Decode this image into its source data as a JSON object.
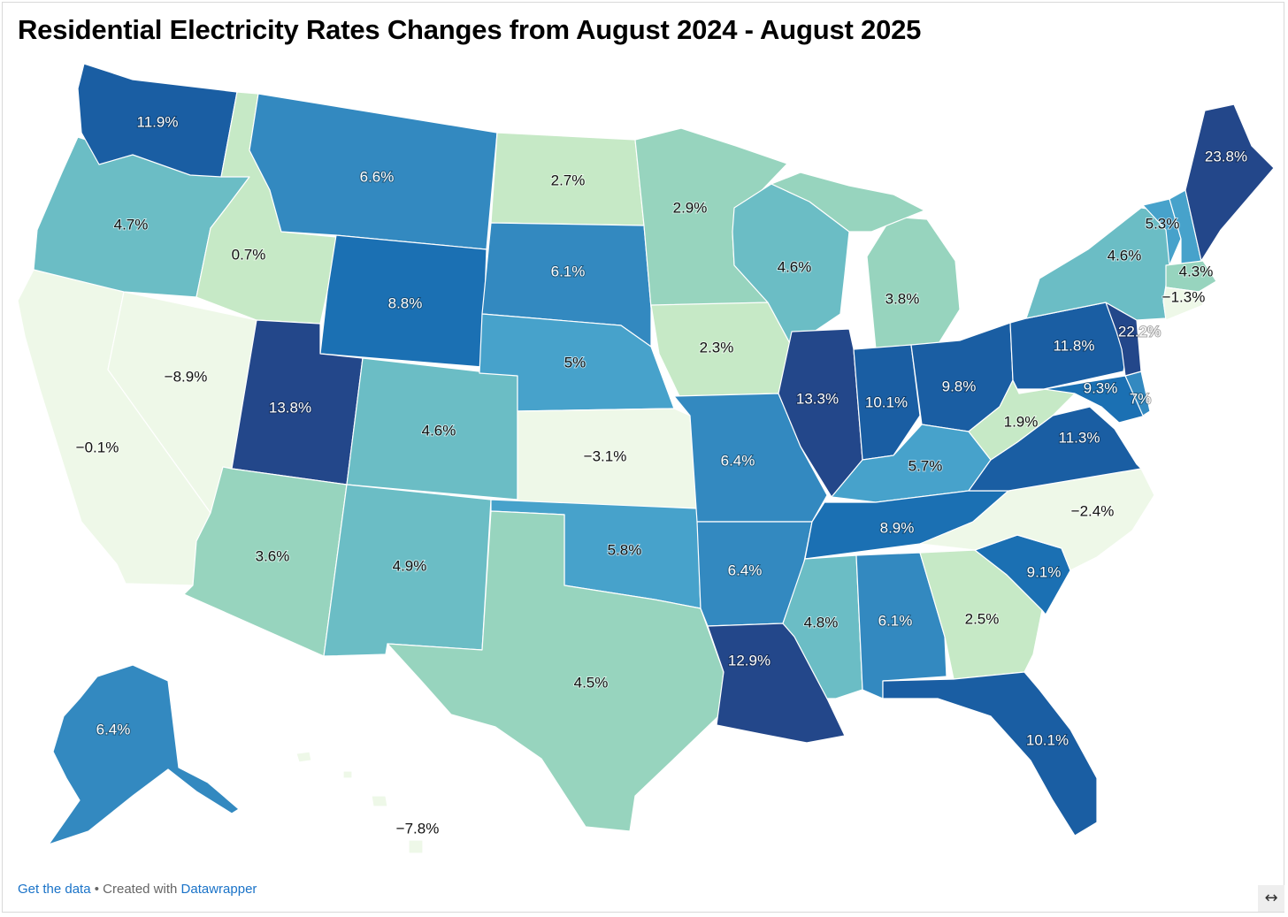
{
  "title": "Residential Electricity Rates Changes from August 2024 - August 2025",
  "footer": {
    "get_data": "Get the data",
    "separator": " • Created with ",
    "tool": "Datawrapper"
  },
  "resize_icon": "↔",
  "color_scale": [
    "#eef8e8",
    "#c6e9c6",
    "#97d4be",
    "#6bbdc5",
    "#47a2cb",
    "#3389c0",
    "#1b70b3",
    "#1a5ea3",
    "#23478a"
  ],
  "map_data": {
    "type": "choropleth",
    "metric": "Residential electricity rate change, Aug 2024 - Aug 2025",
    "states": [
      {
        "state": "WA",
        "label": "11.9%"
      },
      {
        "state": "OR",
        "label": "4.7%"
      },
      {
        "state": "CA",
        "label": "−0.1%"
      },
      {
        "state": "ID",
        "label": "0.7%"
      },
      {
        "state": "NV",
        "label": "−8.9%"
      },
      {
        "state": "MT",
        "label": "6.6%"
      },
      {
        "state": "WY",
        "label": "8.8%"
      },
      {
        "state": "UT",
        "label": "13.8%"
      },
      {
        "state": "AZ",
        "label": "3.6%"
      },
      {
        "state": "CO",
        "label": "4.6%"
      },
      {
        "state": "NM",
        "label": "4.9%"
      },
      {
        "state": "ND",
        "label": "2.7%"
      },
      {
        "state": "SD",
        "label": "6.1%"
      },
      {
        "state": "NE",
        "label": "5%"
      },
      {
        "state": "KS",
        "label": "−3.1%"
      },
      {
        "state": "OK",
        "label": "5.8%"
      },
      {
        "state": "TX",
        "label": "4.5%"
      },
      {
        "state": "MN",
        "label": "2.9%"
      },
      {
        "state": "IA",
        "label": "2.3%"
      },
      {
        "state": "MO",
        "label": "6.4%"
      },
      {
        "state": "AR",
        "label": "6.4%"
      },
      {
        "state": "LA",
        "label": "12.9%"
      },
      {
        "state": "WI",
        "label": "4.6%"
      },
      {
        "state": "IL",
        "label": "13.3%"
      },
      {
        "state": "MI",
        "label": "3.8%"
      },
      {
        "state": "IN",
        "label": "10.1%"
      },
      {
        "state": "OH",
        "label": "9.8%"
      },
      {
        "state": "KY",
        "label": "5.7%"
      },
      {
        "state": "TN",
        "label": "8.9%"
      },
      {
        "state": "MS",
        "label": "4.8%"
      },
      {
        "state": "AL",
        "label": "6.1%"
      },
      {
        "state": "GA",
        "label": "2.5%"
      },
      {
        "state": "FL",
        "label": "10.1%"
      },
      {
        "state": "SC",
        "label": "9.1%"
      },
      {
        "state": "NC",
        "label": "−2.4%"
      },
      {
        "state": "VA",
        "label": "11.3%"
      },
      {
        "state": "WV",
        "label": "1.9%"
      },
      {
        "state": "MD",
        "label": "9.3%"
      },
      {
        "state": "DE",
        "label": "7%"
      },
      {
        "state": "PA",
        "label": "11.8%"
      },
      {
        "state": "NJ",
        "label": "22.2%"
      },
      {
        "state": "NY",
        "label": "4.6%"
      },
      {
        "state": "CT",
        "label": "−1.3%"
      },
      {
        "state": "MA",
        "label": "4.3%"
      },
      {
        "state": "VT",
        "label": "5.3%"
      },
      {
        "state": "ME",
        "label": "23.8%"
      },
      {
        "state": "AK",
        "label": "6.4%"
      },
      {
        "state": "HI",
        "label": "−7.8%"
      }
    ]
  }
}
